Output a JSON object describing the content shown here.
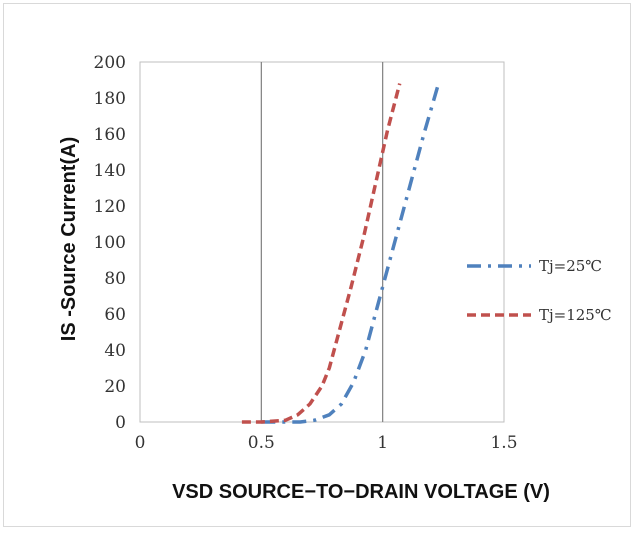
{
  "chart_data": {
    "type": "line",
    "xlabel": "VSD SOURCE−TO−DRAIN VOLTAGE (V)",
    "ylabel": "IS -Source Current(A)",
    "xlim": [
      0,
      1.5
    ],
    "ylim": [
      0,
      200
    ],
    "x_ticks": [
      0,
      0.5,
      1,
      1.5
    ],
    "x_tick_labels": [
      "0",
      "0.5",
      "1",
      "1.5"
    ],
    "y_ticks": [
      0,
      20,
      40,
      60,
      80,
      100,
      120,
      140,
      160,
      180,
      200
    ],
    "y_tick_labels": [
      "0",
      "20",
      "40",
      "60",
      "80",
      "100",
      "120",
      "140",
      "160",
      "180",
      "200"
    ],
    "grid": "vertical major gridlines",
    "legend_position": "right",
    "series": [
      {
        "name": "Tj=25℃",
        "color": "#4f81bd",
        "style": "dash-dot",
        "x": [
          0.5,
          0.6,
          0.66,
          0.72,
          0.78,
          0.83,
          0.88,
          0.93,
          0.98,
          1.03,
          1.1,
          1.17,
          1.23
        ],
        "y": [
          0,
          0,
          0,
          1,
          4,
          10,
          22,
          40,
          65,
          90,
          125,
          160,
          188
        ]
      },
      {
        "name": "Tj=125℃",
        "color": "#c0504d",
        "style": "dash",
        "x": [
          0.42,
          0.5,
          0.6,
          0.65,
          0.7,
          0.75,
          0.78,
          0.82,
          0.87,
          0.92,
          0.97,
          1.02,
          1.07
        ],
        "y": [
          0,
          0,
          1,
          4,
          10,
          20,
          30,
          50,
          75,
          102,
          132,
          162,
          188
        ]
      }
    ]
  }
}
